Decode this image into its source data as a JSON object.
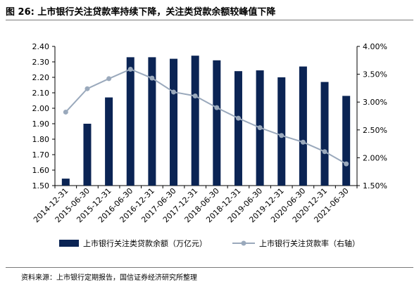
{
  "header": {
    "title": "图 26: 上市银行关注贷款率持续下降，关注类贷款余额较峰值下降"
  },
  "footer": {
    "source": "资料来源：上市银行定期报告，国信证券经济研究所整理"
  },
  "colors": {
    "bar": "#0b2454",
    "line": "#9aa9bc",
    "axis": "#000000"
  },
  "chart_data": {
    "type": "bar+line",
    "categories": [
      "2014-12-31",
      "2015-06-30",
      "2015-12-31",
      "2016-06-30",
      "2016-12-31",
      "2017-06-30",
      "2017-12-31",
      "2018-06-30",
      "2018-12-31",
      "2019-06-30",
      "2019-12-31",
      "2020-06-30",
      "2020-12-31",
      "2021-06-30"
    ],
    "series": [
      {
        "name": "上市银行关注类贷款余额（万亿元）",
        "type": "bar",
        "axis": "left",
        "values": [
          1.545,
          1.9,
          2.07,
          2.33,
          2.33,
          2.32,
          2.34,
          2.31,
          2.24,
          2.245,
          2.2,
          2.27,
          2.17,
          2.08
        ]
      },
      {
        "name": "上市银行关注贷款率（右轴）",
        "type": "line",
        "axis": "right",
        "values": [
          2.82,
          3.24,
          3.42,
          3.59,
          3.43,
          3.18,
          3.11,
          2.9,
          2.71,
          2.54,
          2.4,
          2.28,
          2.11,
          1.89
        ]
      }
    ],
    "y_left": {
      "min": 1.5,
      "max": 2.4,
      "ticks": [
        "1.50",
        "1.60",
        "1.70",
        "1.80",
        "1.90",
        "2.00",
        "2.10",
        "2.20",
        "2.30",
        "2.40"
      ]
    },
    "y_right": {
      "min": 1.5,
      "max": 4.0,
      "ticks": [
        "1.50%",
        "2.00%",
        "2.50%",
        "3.00%",
        "3.50%",
        "4.00%"
      ]
    },
    "grid": false,
    "legend_position": "bottom"
  }
}
